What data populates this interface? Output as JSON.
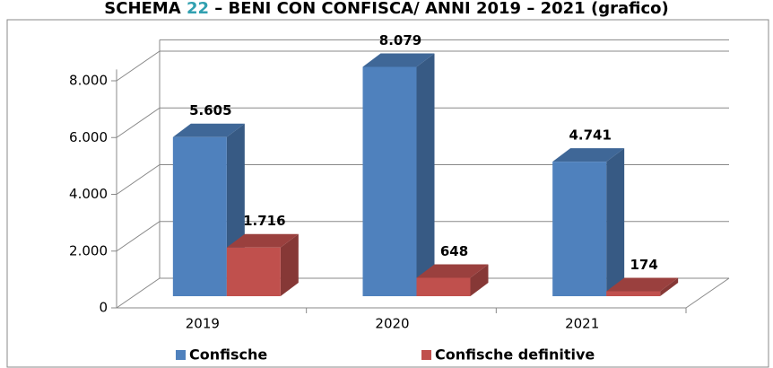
{
  "chart_data": {
    "type": "bar3d",
    "title_start": "SCHEMA",
    "title_number": "22",
    "title_end": "– BENI CON CONFISCA/ ANNI 2019 – 2021 (grafico)",
    "categories": [
      "2019",
      "2020",
      "2021"
    ],
    "series": [
      {
        "name": "Confische",
        "color": "#4f81bd",
        "values": [
          5605,
          8079,
          4741
        ],
        "value_labels": [
          "5.605",
          "8.079",
          "4.741"
        ]
      },
      {
        "name": "Confische definitive",
        "color": "#c0504d",
        "values": [
          1716,
          648,
          174
        ],
        "value_labels": [
          "1.716",
          "648",
          "174"
        ]
      }
    ],
    "ylim": [
      0,
      8400
    ],
    "yticks": [
      0,
      {
        "value": 2000,
        "label": "2.000"
      },
      {
        "value": 4000,
        "label": "4.000"
      },
      {
        "value": 6000,
        "label": "6.000"
      },
      {
        "value": 8000,
        "label": "8.000"
      }
    ],
    "grid": true,
    "legend": "bottom"
  }
}
